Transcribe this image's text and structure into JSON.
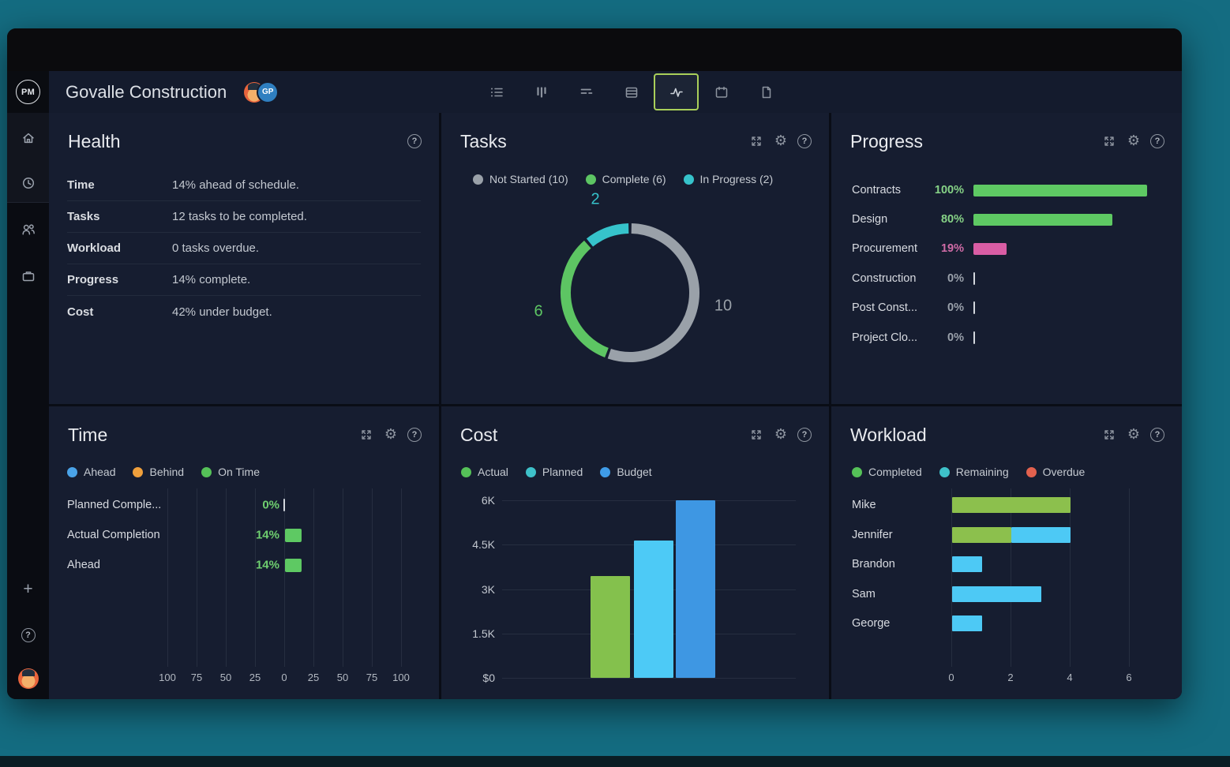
{
  "colors": {
    "outer_background": "#146c81",
    "panel": "#161d30",
    "accent_active": "#a9cf5a",
    "green": "#5dc563",
    "bar_green": "#8cc04d",
    "pink": "#d95da4",
    "teal": "#36c3cb",
    "light_blue": "#4dc9f5",
    "blue": "#3e97e3",
    "orange": "#f0a03c",
    "red": "#e2614e",
    "gray": "#9aa1a9"
  },
  "titlebar": {
    "lights": [
      "#e5604e",
      "#f0a73b",
      "#4dc043"
    ]
  },
  "header": {
    "logo": "PM",
    "title": "Govalle Construction",
    "avatars": [
      {
        "type": "emoji-avatar"
      },
      {
        "type": "initials",
        "label": "GP",
        "color": "#2f7fc0"
      }
    ],
    "toolbar": [
      {
        "icon": "list-icon",
        "active": false
      },
      {
        "icon": "board-icon",
        "active": false
      },
      {
        "icon": "gantt-icon",
        "active": false
      },
      {
        "icon": "sheet-icon",
        "active": false
      },
      {
        "icon": "dashboard-icon",
        "active": true
      },
      {
        "icon": "calendar-icon",
        "active": false
      },
      {
        "icon": "document-icon",
        "active": false
      }
    ]
  },
  "sidebar": {
    "top_icons": [
      "home-icon",
      "clock-icon"
    ],
    "mid_icons": [
      "team-icon",
      "briefcase-icon"
    ],
    "bottom_icons": [
      "plus-icon",
      "help-icon",
      "user-avatar"
    ]
  },
  "panels": {
    "health": {
      "title": "Health",
      "controls": [
        "help-icon"
      ],
      "rows": [
        {
          "label": "Time",
          "value": "14% ahead of schedule."
        },
        {
          "label": "Tasks",
          "value": "12 tasks to be completed."
        },
        {
          "label": "Workload",
          "value": "0 tasks overdue."
        },
        {
          "label": "Progress",
          "value": "14% complete."
        },
        {
          "label": "Cost",
          "value": "42% under budget."
        }
      ]
    },
    "tasks": {
      "title": "Tasks",
      "controls": [
        "expand-icon",
        "settings-icon",
        "help-icon"
      ],
      "legend": [
        {
          "label": "Not Started (10)",
          "color": "#9aa1a9"
        },
        {
          "label": "Complete (6)",
          "color": "#5dc563"
        },
        {
          "label": "In Progress (2)",
          "color": "#36c3cb"
        }
      ],
      "donut_labels": [
        {
          "text": "2",
          "color": "#36c3cb"
        },
        {
          "text": "10",
          "color": "#9aa1a9"
        },
        {
          "text": "6",
          "color": "#5dc563"
        }
      ]
    },
    "progress": {
      "title": "Progress",
      "controls": [
        "expand-icon",
        "settings-icon",
        "help-icon"
      ],
      "rows": [
        {
          "label": "Contracts",
          "pct": "100%",
          "value": 100,
          "bar_color": "#5ec963",
          "text_color": "#86d286"
        },
        {
          "label": "Design",
          "pct": "80%",
          "value": 80,
          "bar_color": "#5ec963",
          "text_color": "#86d286"
        },
        {
          "label": "Procurement",
          "pct": "19%",
          "value": 19,
          "bar_color": "#d95da4",
          "text_color": "#cf6ba6"
        },
        {
          "label": "Construction",
          "pct": "0%",
          "value": 0,
          "bar_color": "none",
          "text_color": "#9aa1ab"
        },
        {
          "label": "Post Const...",
          "pct": "0%",
          "value": 0,
          "bar_color": "none",
          "text_color": "#9aa1ab"
        },
        {
          "label": "Project Clo...",
          "pct": "0%",
          "value": 0,
          "bar_color": "none",
          "text_color": "#9aa1ab"
        }
      ]
    },
    "time": {
      "title": "Time",
      "controls": [
        "expand-icon",
        "settings-icon",
        "help-icon"
      ],
      "legend": [
        {
          "label": "Ahead",
          "color": "#4aa3e8"
        },
        {
          "label": "Behind",
          "color": "#f0a03c"
        },
        {
          "label": "On Time",
          "color": "#55c158"
        }
      ],
      "rows": [
        {
          "label": "Planned Comple...",
          "pct": "0%",
          "value": 0
        },
        {
          "label": "Actual Completion",
          "pct": "14%",
          "value": 14
        },
        {
          "label": "Ahead",
          "pct": "14%",
          "value": 14
        }
      ],
      "ticks": [
        "100",
        "75",
        "50",
        "25",
        "0",
        "25",
        "50",
        "75",
        "100"
      ],
      "value_color": "#6fcf6f",
      "bar_color": "#5ec963"
    },
    "cost": {
      "title": "Cost",
      "controls": [
        "expand-icon",
        "settings-icon",
        "help-icon"
      ],
      "legend": [
        {
          "label": "Actual",
          "color": "#55c158"
        },
        {
          "label": "Planned",
          "color": "#3ec1c9"
        },
        {
          "label": "Budget",
          "color": "#3f9ce8"
        }
      ],
      "yticks": [
        "6K",
        "4.5K",
        "3K",
        "1.5K",
        "$0"
      ],
      "bars": [
        {
          "name": "Actual",
          "value": 3450,
          "color": "#84c14d"
        },
        {
          "name": "Planned",
          "value": 4650,
          "color": "#4dcaf6"
        },
        {
          "name": "Budget",
          "value": 6000,
          "color": "#3e97e3"
        }
      ],
      "ymax": 6000
    },
    "workload": {
      "title": "Workload",
      "controls": [
        "expand-icon",
        "settings-icon",
        "help-icon"
      ],
      "legend": [
        {
          "label": "Completed",
          "color": "#55c158"
        },
        {
          "label": "Remaining",
          "color": "#3ec1c9"
        },
        {
          "label": "Overdue",
          "color": "#e2614e"
        }
      ],
      "rows": [
        {
          "name": "Mike",
          "completed": 4,
          "remaining": 0
        },
        {
          "name": "Jennifer",
          "completed": 2,
          "remaining": 2
        },
        {
          "name": "Brandon",
          "completed": 0,
          "remaining": 1
        },
        {
          "name": "Sam",
          "completed": 0,
          "remaining": 3
        },
        {
          "name": "George",
          "completed": 0,
          "remaining": 1
        }
      ],
      "ticks": [
        "0",
        "2",
        "4",
        "6"
      ],
      "xmax": 6,
      "completed_color": "#8cc04d",
      "remaining_color": "#4dc9f5"
    }
  },
  "chart_data": [
    {
      "type": "pie",
      "title": "Tasks",
      "donut": true,
      "slices": [
        {
          "label": "Not Started",
          "value": 10,
          "color": "#9aa1a9"
        },
        {
          "label": "Complete",
          "value": 6,
          "color": "#5dc563"
        },
        {
          "label": "In Progress",
          "value": 2,
          "color": "#36c3cb"
        }
      ],
      "total": 18,
      "legend_position": "top"
    },
    {
      "type": "bar",
      "title": "Progress",
      "orientation": "horizontal",
      "categories": [
        "Contracts",
        "Design",
        "Procurement",
        "Construction",
        "Post Const...",
        "Project Clo..."
      ],
      "values": [
        100,
        80,
        19,
        0,
        0,
        0
      ],
      "unit": "%",
      "xlim": [
        0,
        100
      ]
    },
    {
      "type": "bar",
      "title": "Time",
      "orientation": "horizontal",
      "categories": [
        "Planned Comple...",
        "Actual Completion",
        "Ahead"
      ],
      "values": [
        0,
        14,
        14
      ],
      "unit": "%",
      "xlim": [
        -100,
        100
      ],
      "xticks": [
        100,
        75,
        50,
        25,
        0,
        25,
        50,
        75,
        100
      ],
      "grid": true
    },
    {
      "type": "bar",
      "title": "Cost",
      "orientation": "vertical",
      "categories": [
        "Actual",
        "Planned",
        "Budget"
      ],
      "values": [
        3450,
        4650,
        6000
      ],
      "ylim": [
        0,
        6000
      ],
      "yticks": [
        "6K",
        "4.5K",
        "3K",
        "1.5K",
        "$0"
      ],
      "grid": true,
      "legend_position": "top"
    },
    {
      "type": "bar",
      "title": "Workload",
      "orientation": "horizontal",
      "stacked": true,
      "categories": [
        "Mike",
        "Jennifer",
        "Brandon",
        "Sam",
        "George"
      ],
      "series": [
        {
          "name": "Completed",
          "values": [
            4,
            2,
            0,
            0,
            0
          ]
        },
        {
          "name": "Remaining",
          "values": [
            0,
            2,
            1,
            3,
            1
          ]
        },
        {
          "name": "Overdue",
          "values": [
            0,
            0,
            0,
            0,
            0
          ]
        }
      ],
      "xlim": [
        0,
        6
      ],
      "xticks": [
        0,
        2,
        4,
        6
      ],
      "grid": true,
      "legend_position": "top"
    }
  ]
}
